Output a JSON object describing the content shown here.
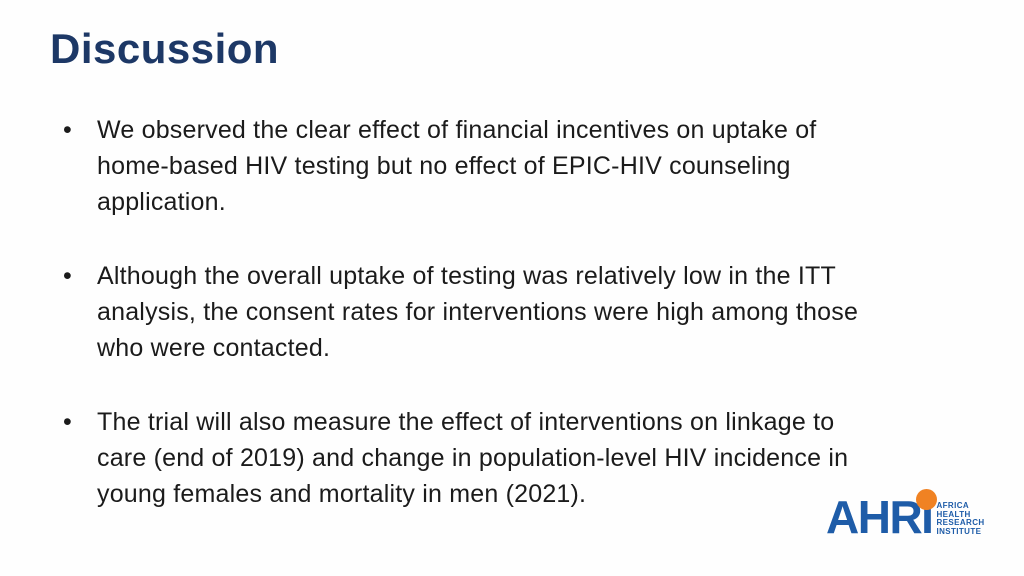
{
  "slide": {
    "title": "Discussion",
    "bullet_char": "•",
    "bullets": [
      {
        "lines": [
          "We observed the clear effect of financial incentives on uptake of",
          "home-based HIV testing but no effect of EPIC-HIV counseling",
          "application."
        ]
      },
      {
        "lines": [
          "Although the overall uptake of testing was relatively low in the ITT",
          "analysis, the consent rates for interventions were high among those",
          "who were contacted."
        ]
      },
      {
        "lines": [
          "The trial will also measure the effect of interventions on linkage to",
          "care (end of 2019) and change in population-level HIV incidence in",
          "young females and mortality in men (2021)."
        ]
      }
    ]
  },
  "logo": {
    "wordmark": "AHRI",
    "org_lines": [
      "AFRICA",
      "HEALTH",
      "RESEARCH",
      "INSTITUTE"
    ]
  },
  "colors": {
    "title_navy": "#1d3866",
    "body_text": "#1b1b1b",
    "logo_blue": "#1e5ca8",
    "logo_orange": "#f08223",
    "background": "#fefefe"
  }
}
